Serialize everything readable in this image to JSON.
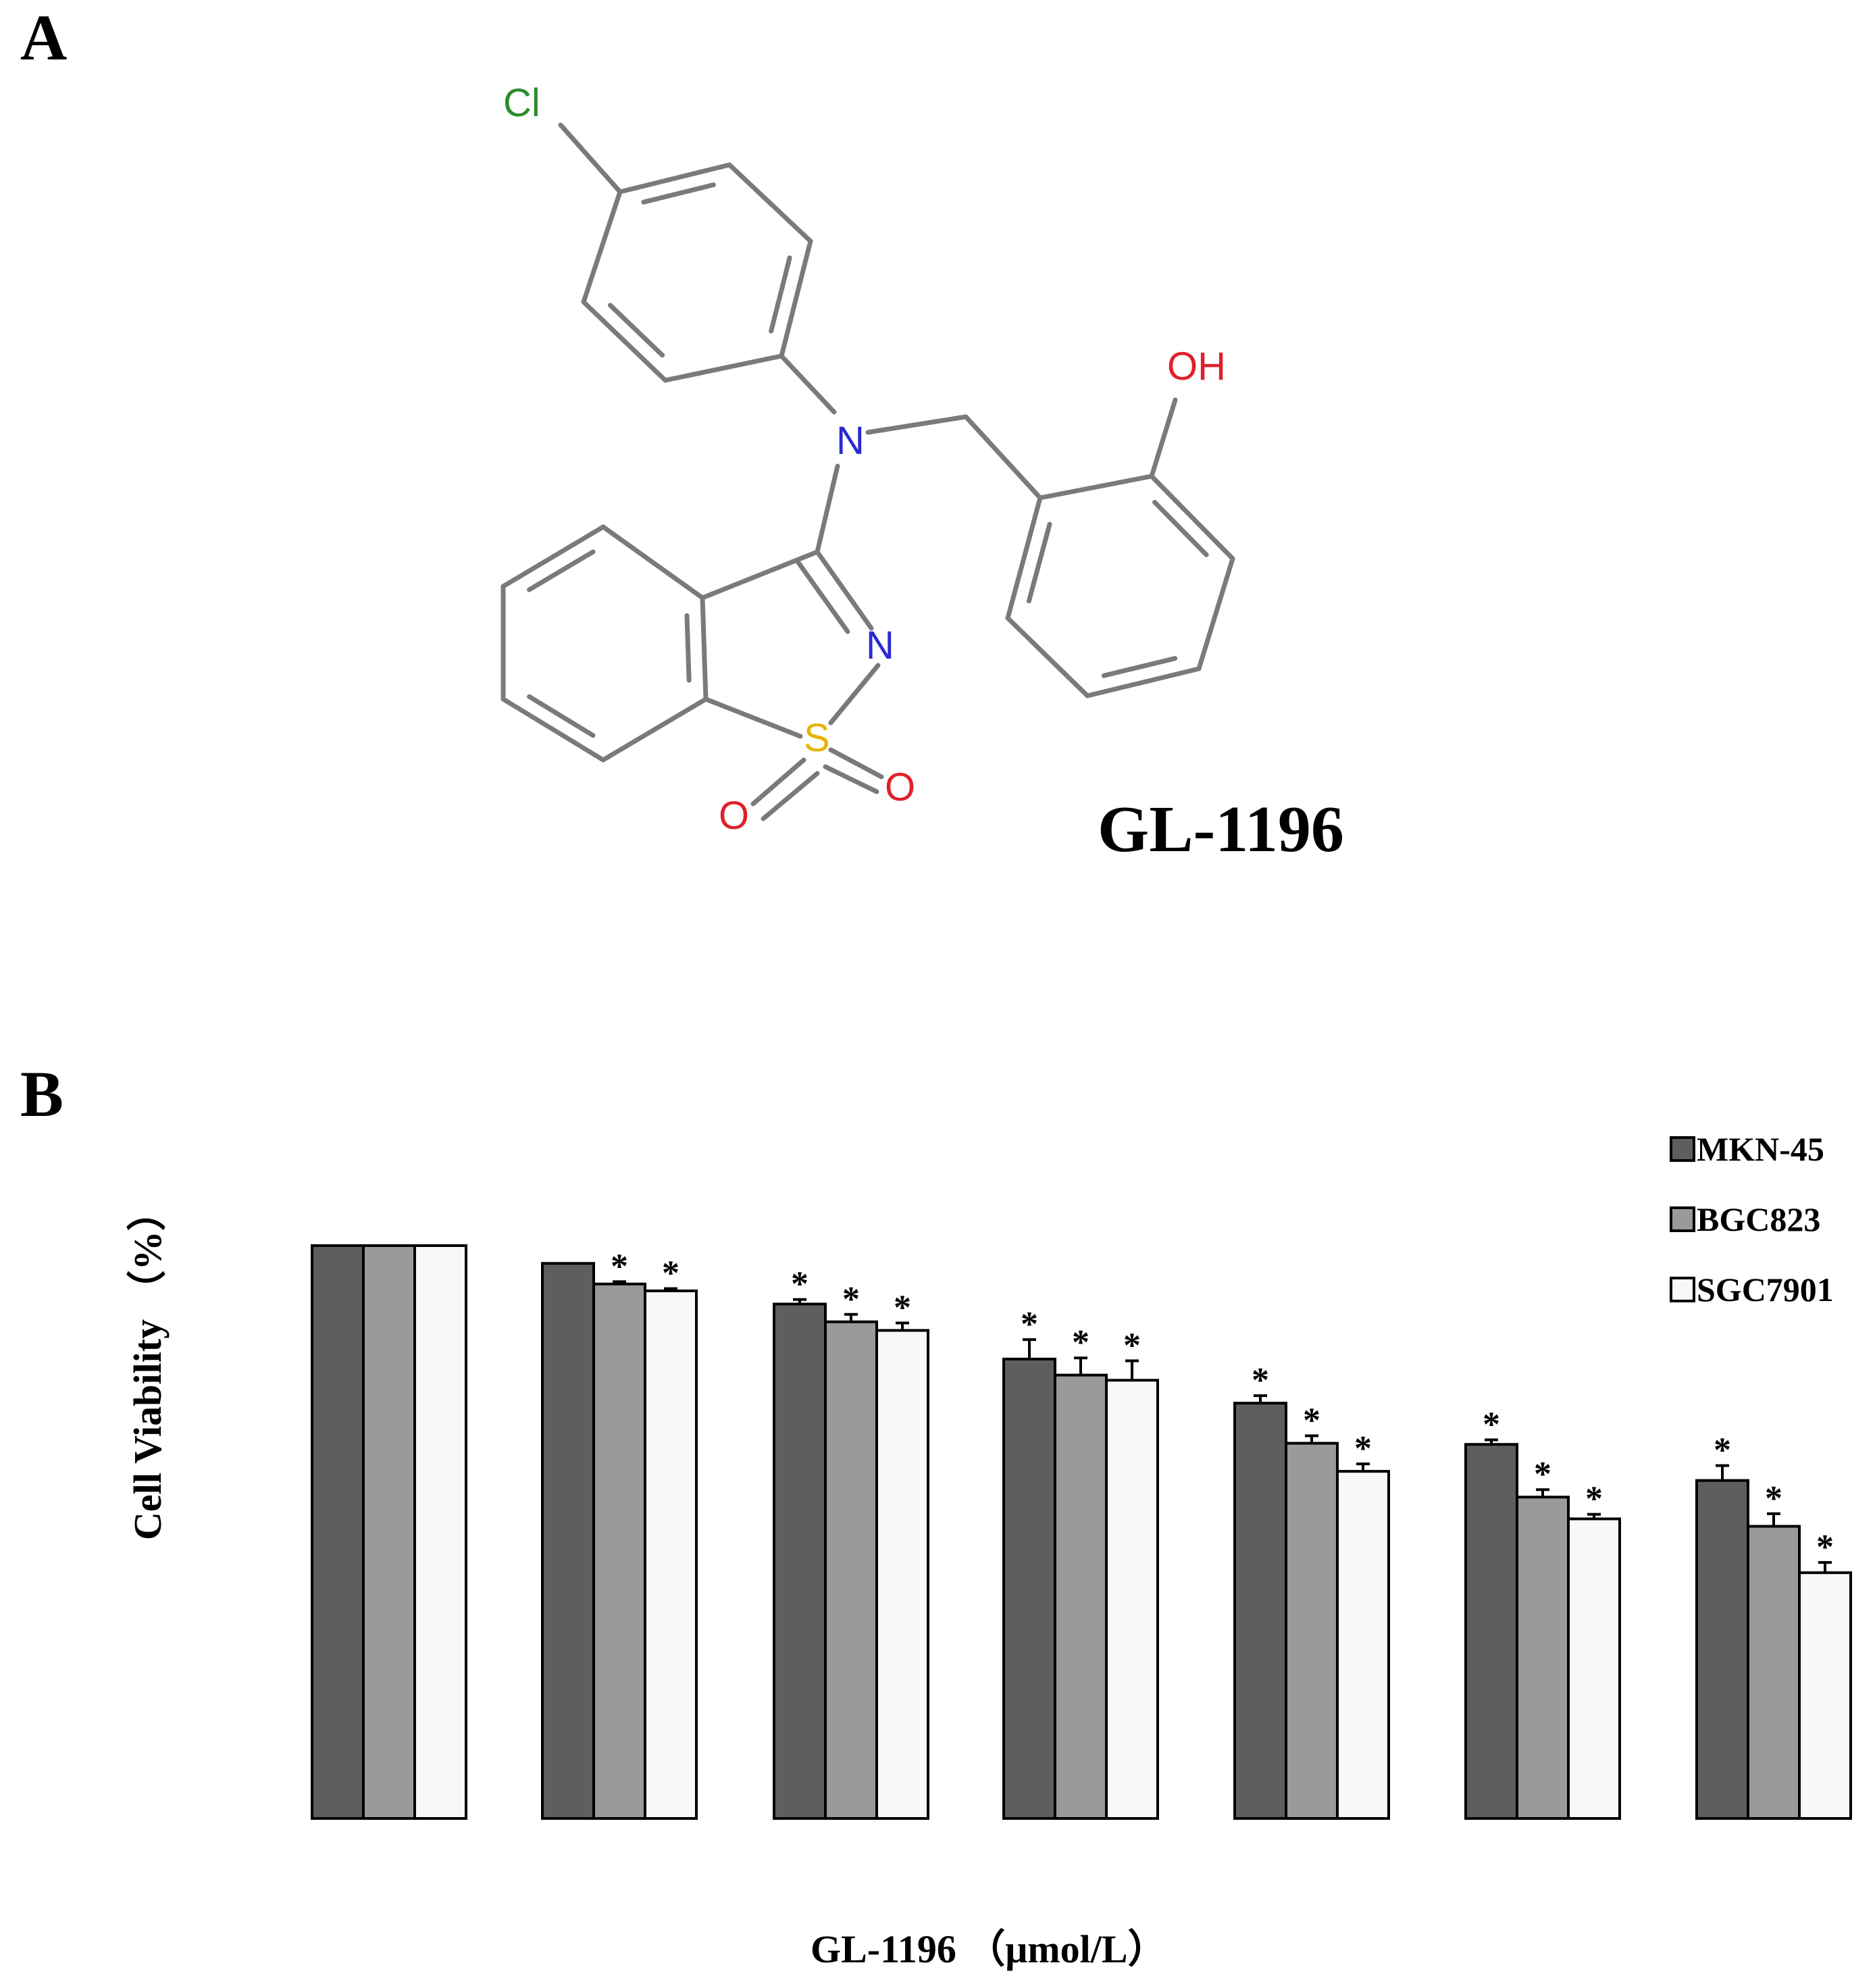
{
  "panels": {
    "a": "A",
    "b": "B"
  },
  "structure": {
    "compound_name": "GL-1196",
    "atoms": {
      "cl": "Cl",
      "n_amine": "N",
      "oh": "OH",
      "n_ring": "N",
      "s": "S",
      "o1": "O",
      "o2": "O"
    },
    "colors": {
      "bond": "#7a7a7a",
      "cl": "#2e8b2e",
      "n": "#2a2ad0",
      "o": "#e0202a",
      "s": "#e6b400"
    }
  },
  "chart_data": {
    "type": "bar",
    "xlabel": "GL-1196 （μmol/L）",
    "ylabel": "Cell Viability （%）",
    "ylim": [
      0,
      100
    ],
    "categories": [
      "",
      "",
      "",
      "",
      "",
      "",
      ""
    ],
    "series": [
      {
        "name": "MKN-45",
        "color": "#5e5e5e",
        "values": [
          100,
          96.9,
          89.8,
          80.2,
          72.5,
          65.3,
          59.0
        ],
        "errors": [
          0,
          0,
          0.8,
          3.4,
          1.3,
          0.8,
          2.6
        ],
        "significant": [
          false,
          false,
          true,
          true,
          true,
          true,
          true
        ]
      },
      {
        "name": "BGC823",
        "color": "#9a9a9a",
        "values": [
          100,
          93.3,
          86.7,
          77.4,
          65.5,
          56.1,
          51.0
        ],
        "errors": [
          0,
          0.4,
          1.3,
          3.0,
          1.3,
          1.3,
          2.2
        ],
        "significant": [
          false,
          true,
          true,
          true,
          true,
          true,
          true
        ]
      },
      {
        "name": "SGC7901",
        "color": "#f8f8f8",
        "values": [
          100,
          92.1,
          85.2,
          76.5,
          60.6,
          52.3,
          42.9
        ],
        "errors": [
          0,
          0.4,
          1.3,
          3.4,
          1.3,
          0.8,
          1.8
        ],
        "significant": [
          false,
          true,
          true,
          true,
          true,
          true,
          true
        ]
      }
    ],
    "significance_marker": "*",
    "legend_position": "top-right",
    "grid": false
  }
}
